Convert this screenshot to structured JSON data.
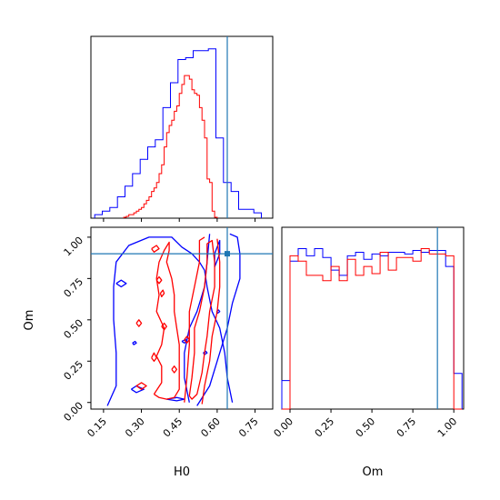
{
  "chart_data": {
    "type": "corner",
    "colors": {
      "blue": "#0000ff",
      "red": "#ff0000",
      "truth": "#1f77b4"
    },
    "truth": {
      "H0": 0.64,
      "Om": 0.9
    },
    "labels": {
      "x_bottom_left": "H0",
      "y_left": "Om",
      "x_bottom_right": "Om"
    },
    "panels": [
      {
        "id": "hist-H0",
        "type": "step-histogram",
        "xlim": [
          0.1,
          0.82
        ],
        "ylim": [
          0,
          1.02
        ],
        "ticks_shown": false,
        "bin_edges": [
          0.115,
          0.145,
          0.175,
          0.205,
          0.235,
          0.265,
          0.295,
          0.325,
          0.355,
          0.385,
          0.415,
          0.445,
          0.475,
          0.505,
          0.535,
          0.565,
          0.595,
          0.625,
          0.655,
          0.685,
          0.715,
          0.745,
          0.775
        ],
        "series": [
          {
            "name": "",
            "color": "#0000ff",
            "values": [
              0.02,
              0.04,
              0.06,
              0.12,
              0.18,
              0.25,
              0.33,
              0.4,
              0.44,
              0.62,
              0.76,
              0.89,
              0.9,
              0.94,
              0.94,
              0.95,
              0.45,
              0.2,
              0.15,
              0.05,
              0.05,
              0.03
            ]
          },
          {
            "name": "",
            "color": "#ff0000",
            "bin_edges": [
              0.23,
              0.24,
              0.25,
              0.26,
              0.27,
              0.28,
              0.29,
              0.3,
              0.31,
              0.32,
              0.33,
              0.34,
              0.35,
              0.36,
              0.37,
              0.38,
              0.39,
              0.4,
              0.41,
              0.42,
              0.43,
              0.44,
              0.45,
              0.46,
              0.47,
              0.48,
              0.49,
              0.5,
              0.51,
              0.52,
              0.53,
              0.54,
              0.55,
              0.56,
              0.57,
              0.58,
              0.59,
              0.6
            ],
            "values": [
              0.005,
              0.01,
              0.02,
              0.02,
              0.03,
              0.04,
              0.05,
              0.06,
              0.08,
              0.1,
              0.12,
              0.15,
              0.17,
              0.2,
              0.25,
              0.3,
              0.4,
              0.48,
              0.52,
              0.55,
              0.6,
              0.63,
              0.7,
              0.75,
              0.8,
              0.8,
              0.78,
              0.72,
              0.7,
              0.69,
              0.62,
              0.55,
              0.45,
              0.22,
              0.2,
              0.04,
              0.005
            ]
          }
        ]
      },
      {
        "id": "contour-H0-Om",
        "type": "contour",
        "xlim": [
          0.1,
          0.82
        ],
        "ylim": [
          -0.04,
          1.06
        ],
        "x_ticks": [
          "0.15",
          "0.30",
          "0.45",
          "0.60",
          "0.75"
        ],
        "x_tick_values": [
          0.15,
          0.3,
          0.45,
          0.6,
          0.75
        ],
        "y_ticks": [
          "0.00",
          "0.25",
          "0.50",
          "0.75",
          "1.00"
        ],
        "y_tick_values": [
          0.0,
          0.25,
          0.5,
          0.75,
          1.0
        ],
        "blue_contours": [
          [
            [
              0.165,
              -0.02
            ],
            [
              0.2,
              0.1
            ],
            [
              0.2,
              0.3
            ],
            [
              0.19,
              0.5
            ],
            [
              0.19,
              0.7
            ],
            [
              0.2,
              0.85
            ],
            [
              0.25,
              0.95
            ],
            [
              0.33,
              1.0
            ],
            [
              0.42,
              1.0
            ],
            [
              0.46,
              0.94
            ],
            [
              0.5,
              0.9
            ],
            [
              0.53,
              0.85
            ],
            [
              0.55,
              0.8
            ],
            [
              0.56,
              0.7
            ],
            [
              0.58,
              0.55
            ],
            [
              0.61,
              0.45
            ],
            [
              0.63,
              0.3
            ],
            [
              0.64,
              0.15
            ],
            [
              0.66,
              0.0
            ]
          ],
          [
            [
              0.52,
              -0.02
            ],
            [
              0.57,
              0.1
            ],
            [
              0.6,
              0.25
            ],
            [
              0.64,
              0.45
            ],
            [
              0.66,
              0.6
            ],
            [
              0.69,
              0.75
            ],
            [
              0.69,
              0.9
            ],
            [
              0.68,
              1.0
            ],
            [
              0.65,
              1.02
            ]
          ],
          [
            [
              0.57,
              1.02
            ],
            [
              0.56,
              0.85
            ],
            [
              0.55,
              0.7
            ],
            [
              0.52,
              0.55
            ],
            [
              0.49,
              0.45
            ],
            [
              0.47,
              0.3
            ],
            [
              0.47,
              0.15
            ],
            [
              0.49,
              0.0
            ]
          ],
          [
            [
              0.59,
              0.82
            ],
            [
              0.61,
              0.9
            ],
            [
              0.61,
              0.98
            ],
            [
              0.59,
              0.9
            ],
            [
              0.59,
              0.82
            ]
          ],
          [
            [
              0.26,
              0.08
            ],
            [
              0.28,
              0.1
            ],
            [
              0.31,
              0.08
            ],
            [
              0.28,
              0.06
            ],
            [
              0.26,
              0.08
            ]
          ],
          [
            [
              0.4,
              0.02
            ],
            [
              0.44,
              0.03
            ],
            [
              0.47,
              0.02
            ],
            [
              0.44,
              0.01
            ],
            [
              0.4,
              0.02
            ]
          ],
          [
            [
              0.2,
              0.72
            ],
            [
              0.22,
              0.74
            ],
            [
              0.24,
              0.72
            ],
            [
              0.22,
              0.7
            ],
            [
              0.2,
              0.72
            ]
          ],
          [
            [
              0.265,
              0.36
            ],
            [
              0.275,
              0.37
            ],
            [
              0.28,
              0.36
            ],
            [
              0.27,
              0.35
            ],
            [
              0.265,
              0.36
            ]
          ],
          [
            [
              0.46,
              0.37
            ],
            [
              0.475,
              0.38
            ],
            [
              0.48,
              0.37
            ],
            [
              0.47,
              0.36
            ],
            [
              0.46,
              0.37
            ]
          ],
          [
            [
              0.545,
              0.3
            ],
            [
              0.555,
              0.31
            ],
            [
              0.56,
              0.3
            ],
            [
              0.55,
              0.29
            ],
            [
              0.545,
              0.3
            ]
          ],
          [
            [
              0.598,
              0.55
            ],
            [
              0.605,
              0.56
            ],
            [
              0.61,
              0.55
            ],
            [
              0.602,
              0.54
            ],
            [
              0.598,
              0.55
            ]
          ]
        ],
        "red_contours": [
          [
            [
              0.35,
              0.05
            ],
            [
              0.38,
              0.12
            ],
            [
              0.38,
              0.22
            ],
            [
              0.36,
              0.28
            ],
            [
              0.38,
              0.35
            ],
            [
              0.39,
              0.45
            ],
            [
              0.36,
              0.55
            ],
            [
              0.37,
              0.65
            ],
            [
              0.36,
              0.75
            ],
            [
              0.37,
              0.85
            ],
            [
              0.39,
              0.92
            ],
            [
              0.41,
              0.97
            ],
            [
              0.41,
              0.92
            ],
            [
              0.4,
              0.85
            ],
            [
              0.42,
              0.75
            ],
            [
              0.43,
              0.65
            ],
            [
              0.43,
              0.55
            ],
            [
              0.44,
              0.45
            ],
            [
              0.45,
              0.35
            ],
            [
              0.45,
              0.25
            ],
            [
              0.45,
              0.15
            ],
            [
              0.45,
              0.08
            ],
            [
              0.43,
              0.03
            ],
            [
              0.4,
              0.02
            ],
            [
              0.37,
              0.03
            ],
            [
              0.35,
              0.05
            ]
          ],
          [
            [
              0.49,
              0.04
            ],
            [
              0.5,
              0.15
            ],
            [
              0.51,
              0.3
            ],
            [
              0.51,
              0.45
            ],
            [
              0.53,
              0.55
            ],
            [
              0.55,
              0.7
            ],
            [
              0.56,
              0.85
            ],
            [
              0.56,
              0.96
            ],
            [
              0.58,
              0.98
            ],
            [
              0.59,
              0.85
            ],
            [
              0.59,
              0.7
            ],
            [
              0.57,
              0.55
            ],
            [
              0.56,
              0.4
            ],
            [
              0.55,
              0.3
            ],
            [
              0.54,
              0.18
            ],
            [
              0.52,
              0.05
            ],
            [
              0.5,
              0.02
            ],
            [
              0.49,
              0.04
            ]
          ],
          [
            [
              0.47,
              0.0
            ],
            [
              0.48,
              0.15
            ],
            [
              0.49,
              0.35
            ],
            [
              0.49,
              0.55
            ],
            [
              0.51,
              0.7
            ],
            [
              0.53,
              0.85
            ],
            [
              0.53,
              0.98
            ],
            [
              0.55,
              1.0
            ]
          ],
          [
            [
              0.6,
              0.99
            ],
            [
              0.61,
              0.85
            ],
            [
              0.61,
              0.7
            ],
            [
              0.6,
              0.55
            ],
            [
              0.58,
              0.4
            ],
            [
              0.57,
              0.25
            ],
            [
              0.55,
              0.1
            ],
            [
              0.54,
              -0.01
            ]
          ],
          [
            [
              0.34,
              0.93
            ],
            [
              0.36,
              0.95
            ],
            [
              0.37,
              0.93
            ],
            [
              0.35,
              0.91
            ],
            [
              0.34,
              0.93
            ]
          ],
          [
            [
              0.36,
              0.74
            ],
            [
              0.37,
              0.76
            ],
            [
              0.38,
              0.74
            ],
            [
              0.37,
              0.72
            ],
            [
              0.36,
              0.74
            ]
          ],
          [
            [
              0.28,
              0.48
            ],
            [
              0.29,
              0.5
            ],
            [
              0.3,
              0.48
            ],
            [
              0.29,
              0.46
            ],
            [
              0.28,
              0.48
            ]
          ],
          [
            [
              0.34,
              0.27
            ],
            [
              0.35,
              0.3
            ],
            [
              0.36,
              0.27
            ],
            [
              0.35,
              0.25
            ],
            [
              0.34,
              0.27
            ]
          ],
          [
            [
              0.28,
              0.1
            ],
            [
              0.3,
              0.12
            ],
            [
              0.32,
              0.1
            ],
            [
              0.3,
              0.08
            ],
            [
              0.28,
              0.1
            ]
          ],
          [
            [
              0.38,
              0.46
            ],
            [
              0.39,
              0.48
            ],
            [
              0.4,
              0.46
            ],
            [
              0.39,
              0.44
            ],
            [
              0.38,
              0.46
            ]
          ],
          [
            [
              0.42,
              0.2
            ],
            [
              0.43,
              0.22
            ],
            [
              0.44,
              0.2
            ],
            [
              0.43,
              0.18
            ],
            [
              0.42,
              0.2
            ]
          ],
          [
            [
              0.47,
              0.38
            ],
            [
              0.48,
              0.4
            ],
            [
              0.49,
              0.38
            ],
            [
              0.48,
              0.36
            ],
            [
              0.47,
              0.38
            ]
          ],
          [
            [
              0.375,
              0.66
            ],
            [
              0.385,
              0.68
            ],
            [
              0.39,
              0.66
            ],
            [
              0.38,
              0.64
            ],
            [
              0.375,
              0.66
            ]
          ]
        ]
      },
      {
        "id": "hist-Om",
        "type": "step-histogram",
        "xlim": [
          -0.05,
          1.06
        ],
        "ylim": [
          0,
          1.02
        ],
        "x_ticks": [
          "0.00",
          "0.25",
          "0.50",
          "0.75",
          "1.00"
        ],
        "x_tick_values": [
          0.0,
          0.25,
          0.5,
          0.75,
          1.0
        ],
        "bin_edges": [
          -0.05,
          0.0,
          0.05,
          0.1,
          0.15,
          0.2,
          0.25,
          0.3,
          0.35,
          0.4,
          0.45,
          0.5,
          0.55,
          0.6,
          0.65,
          0.7,
          0.75,
          0.8,
          0.85,
          0.9,
          0.95,
          1.0,
          1.05
        ],
        "series": [
          {
            "name": "",
            "color": "#0000ff",
            "values": [
              0.16,
              0.83,
              0.9,
              0.86,
              0.9,
              0.85,
              0.78,
              0.75,
              0.86,
              0.88,
              0.84,
              0.87,
              0.86,
              0.88,
              0.88,
              0.87,
              0.89,
              0.88,
              0.89,
              0.89,
              0.8,
              0.2
            ]
          },
          {
            "name": "",
            "color": "#ff0000",
            "values": [
              0.0,
              0.86,
              0.83,
              0.75,
              0.75,
              0.72,
              0.8,
              0.72,
              0.84,
              0.75,
              0.8,
              0.76,
              0.88,
              0.78,
              0.85,
              0.85,
              0.83,
              0.9,
              0.87,
              0.87,
              0.86,
              0.0
            ]
          }
        ]
      }
    ]
  }
}
